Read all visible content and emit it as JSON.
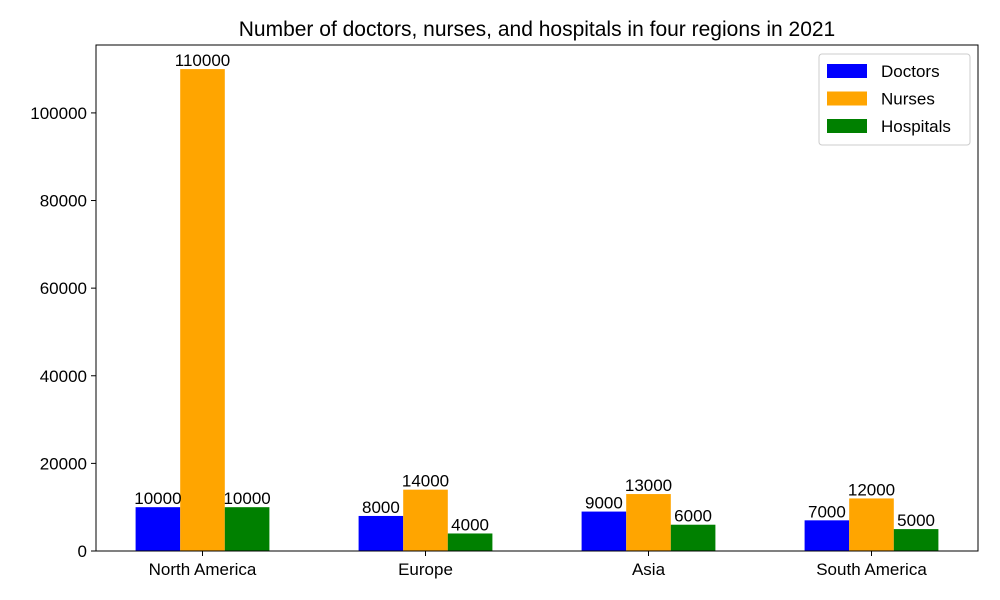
{
  "chart_data": {
    "type": "bar",
    "title": "Number of doctors, nurses, and hospitals in four regions in 2021",
    "xlabel": "",
    "ylabel": "",
    "categories": [
      "North America",
      "Europe",
      "Asia",
      "South America"
    ],
    "series": [
      {
        "name": "Doctors",
        "color": "#0000ff",
        "values": [
          10000,
          8000,
          9000,
          7000
        ]
      },
      {
        "name": "Nurses",
        "color": "#ffa500",
        "values": [
          110000,
          14000,
          13000,
          12000
        ]
      },
      {
        "name": "Hospitals",
        "color": "#008000",
        "values": [
          10000,
          4000,
          6000,
          5000
        ]
      }
    ],
    "ylim": [
      0,
      115500
    ],
    "yticks": [
      "0",
      "20000",
      "40000",
      "60000",
      "80000",
      "100000"
    ],
    "grid": false,
    "legend_position": "top-right",
    "show_value_labels": true
  }
}
